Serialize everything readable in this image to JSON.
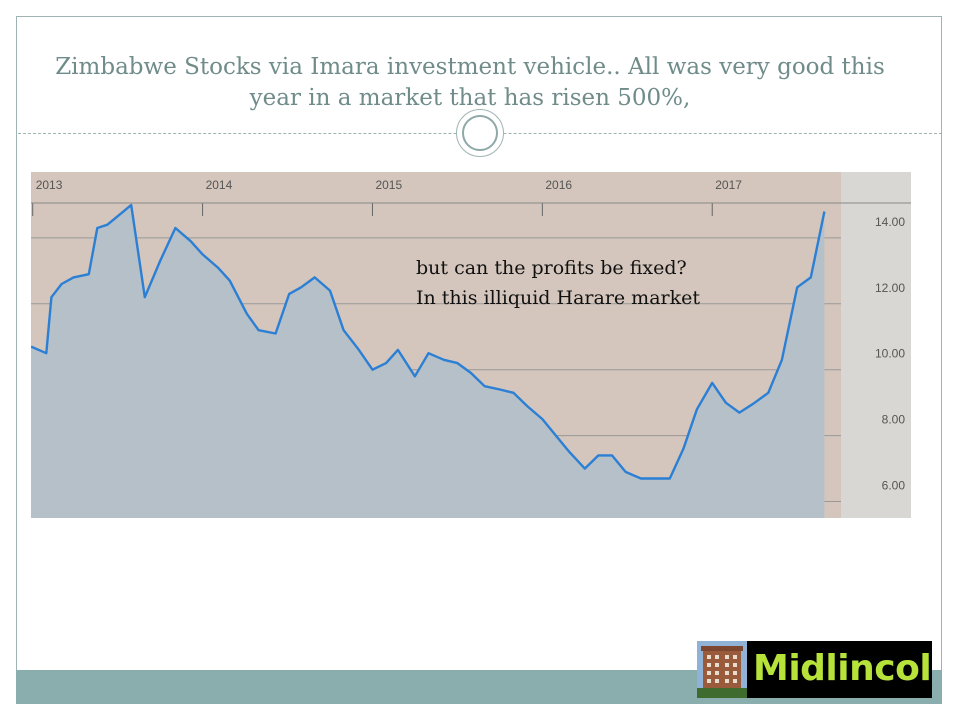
{
  "slide": {
    "title": "Zimbabwe Stocks via Imara investment vehicle.. All was very good this year in a market that has risen 500%,"
  },
  "logo": {
    "text": "Midlincoln",
    "image": "building-photo"
  },
  "colors": {
    "chart_background": "#d4c6bc",
    "right_axis_panel": "#d9d7d3",
    "area_fill": "#b6c0c9",
    "line": "#2b7fd4",
    "gridline": "#999999",
    "accent_band": "#8aaeae",
    "title_text": "#6f8c8a",
    "logo_text": "#b6e23a"
  },
  "chart_data": {
    "type": "area",
    "title": "",
    "xlabel": "",
    "ylabel": "",
    "x_ticks": [
      2013,
      2014,
      2015,
      2016,
      2017
    ],
    "xlim": [
      2012.99,
      2018.17
    ],
    "y_ticks": [
      "14.00",
      "12.00",
      "10.00",
      "8.00",
      "6.00"
    ],
    "ylim": [
      5.5,
      16
    ],
    "y_axis_position": "right",
    "grid": true,
    "annotations": [
      "but can the profits be fixed?",
      "In this illiquid Harare market"
    ],
    "series": [
      {
        "x": [
          2012.99,
          2013.08,
          2013.11,
          2013.17,
          2013.24,
          2013.33,
          2013.38,
          2013.44,
          2013.58,
          2013.66,
          2013.75,
          2013.84,
          2013.93,
          2014.0,
          2014.09,
          2014.16,
          2014.26,
          2014.33,
          2014.43,
          2014.51,
          2014.58,
          2014.66,
          2014.75,
          2014.83,
          2014.92,
          2015.0,
          2015.08,
          2015.15,
          2015.25,
          2015.33,
          2015.42,
          2015.5,
          2015.58,
          2015.66,
          2015.75,
          2015.83,
          2015.91,
          2016.0,
          2016.08,
          2016.16,
          2016.25,
          2016.33,
          2016.41,
          2016.49,
          2016.58,
          2016.66,
          2016.75,
          2016.83,
          2016.91,
          2017.0,
          2017.08,
          2017.16,
          2017.25,
          2017.33,
          2017.41,
          2017.5,
          2017.58,
          2017.66
        ],
        "y": [
          10.7,
          10.5,
          12.2,
          12.6,
          12.8,
          12.9,
          14.3,
          14.4,
          15.0,
          12.2,
          13.3,
          14.3,
          13.9,
          13.5,
          13.1,
          12.7,
          11.7,
          11.2,
          11.1,
          12.3,
          12.5,
          12.8,
          12.4,
          11.2,
          10.6,
          10.0,
          10.2,
          10.6,
          9.8,
          10.5,
          10.3,
          10.2,
          9.9,
          9.5,
          9.4,
          9.3,
          8.9,
          8.5,
          8.0,
          7.5,
          7.0,
          7.4,
          7.4,
          6.9,
          6.7,
          6.7,
          6.7,
          7.6,
          8.8,
          9.6,
          9.0,
          8.7,
          9.0,
          9.3,
          10.3,
          12.5,
          12.8,
          14.8
        ]
      }
    ]
  }
}
